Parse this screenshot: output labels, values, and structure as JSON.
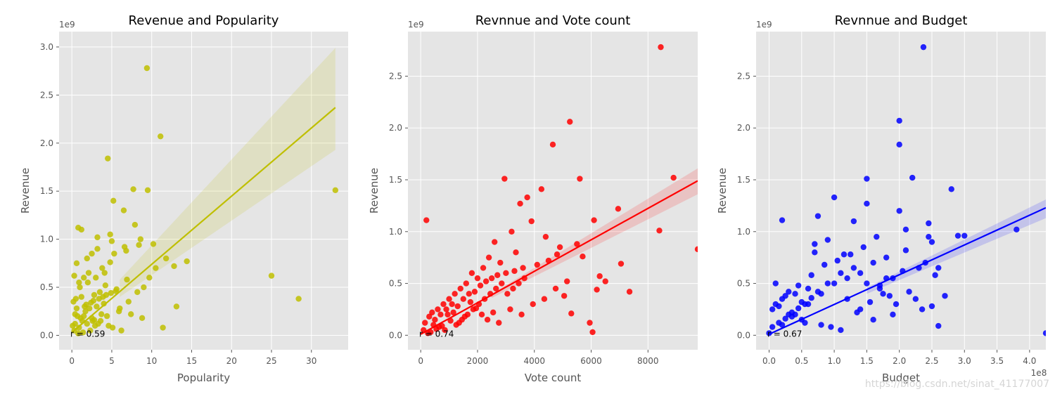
{
  "watermark": "https://blog.csdn.net/sinat_41177007",
  "chart_data": [
    {
      "type": "scatter",
      "title": "Revenue and Popularity",
      "xlabel": "Popularity",
      "ylabel": "Revenue",
      "y_offset_label": "1e9",
      "x_offset_label": "",
      "xlim": [
        -1.6,
        34.6
      ],
      "ylim": [
        -0.15,
        3.16
      ],
      "xticks": [
        0,
        5,
        10,
        15,
        20,
        25,
        30
      ],
      "xtick_labels": [
        "0",
        "5",
        "10",
        "15",
        "20",
        "25",
        "30"
      ],
      "yticks": [
        0,
        0.5,
        1.0,
        1.5,
        2.0,
        2.5,
        3.0
      ],
      "ytick_labels": [
        "0.0",
        "0.5",
        "1.0",
        "1.5",
        "2.0",
        "2.5",
        "3.0"
      ],
      "color": "#bfbf00",
      "annotation": "r = 0.59",
      "regression": {
        "x": [
          0,
          33
        ],
        "y": [
          0.03,
          2.37
        ]
      },
      "ci_band": {
        "x": [
          6,
          33
        ],
        "upper": [
          0.58,
          2.99
        ],
        "lower": [
          0.4,
          1.93
        ]
      },
      "points": {
        "x": [
          9.4,
          11.1,
          4.5,
          7.7,
          9.5,
          33.0,
          25.0,
          28.4,
          13.1,
          11.4,
          0.8,
          1.2,
          10.2,
          12.8,
          14.4,
          6.5,
          7.9,
          8.6,
          5.2,
          4.8,
          3.2,
          2.5,
          1.9,
          0.6,
          0.3,
          3.8,
          2.1,
          1.5,
          0.9,
          4.2,
          5.6,
          6.9,
          3.5,
          2.8,
          1.2,
          0.5,
          0.2,
          4.0,
          3.1,
          2.2,
          1.7,
          0.4,
          0.7,
          1.1,
          2.6,
          3.3,
          4.6,
          5.1,
          6.2,
          7.1,
          8.2,
          9.0,
          5.9,
          4.4,
          3.6,
          2.9,
          2.3,
          1.4,
          0.8,
          0.3,
          0.1,
          1.8,
          2.7,
          3.9,
          4.9,
          6.0,
          7.4,
          8.8,
          10.5,
          11.8,
          1.0,
          2.0,
          3.0,
          4.1,
          5.3,
          6.6,
          0.6,
          1.6,
          2.4,
          3.4,
          4.3,
          5.5,
          1.3,
          2.5,
          3.7,
          0.9,
          1.9,
          2.8,
          0.4,
          1.5,
          4.8,
          6.8,
          8.4,
          9.7,
          5.0,
          3.2
        ],
        "y": [
          2.78,
          2.07,
          1.84,
          1.52,
          1.51,
          1.51,
          0.62,
          0.38,
          0.3,
          0.08,
          1.12,
          1.1,
          0.95,
          0.72,
          0.77,
          1.3,
          1.15,
          1.0,
          1.4,
          1.05,
          0.9,
          0.85,
          0.8,
          0.75,
          0.62,
          0.7,
          0.65,
          0.6,
          0.55,
          0.52,
          0.48,
          0.58,
          0.45,
          0.42,
          0.4,
          0.38,
          0.35,
          0.33,
          0.3,
          0.28,
          0.25,
          0.22,
          0.2,
          0.18,
          0.15,
          0.12,
          0.1,
          0.08,
          0.05,
          0.35,
          0.45,
          0.5,
          0.25,
          0.2,
          0.15,
          0.1,
          0.05,
          0.03,
          0.02,
          0.05,
          0.1,
          0.32,
          0.36,
          0.4,
          0.44,
          0.28,
          0.22,
          0.18,
          0.7,
          0.8,
          0.5,
          0.55,
          0.6,
          0.65,
          0.85,
          0.92,
          0.28,
          0.3,
          0.34,
          0.38,
          0.42,
          0.46,
          0.15,
          0.18,
          0.22,
          0.08,
          0.12,
          0.16,
          0.12,
          0.2,
          0.76,
          0.88,
          0.94,
          0.6,
          0.98,
          1.02
        ]
      }
    },
    {
      "type": "scatter",
      "title": "Revnnue and Vote count",
      "xlabel": "Vote count",
      "ylabel": "Revenue",
      "y_offset_label": "1e9",
      "x_offset_label": "",
      "xlim": [
        -450,
        9750
      ],
      "ylim": [
        -0.14,
        2.93
      ],
      "xticks": [
        0,
        2000,
        4000,
        6000,
        8000
      ],
      "xtick_labels": [
        "0",
        "2000",
        "4000",
        "6000",
        "8000"
      ],
      "yticks": [
        0,
        0.5,
        1.0,
        1.5,
        2.0,
        2.5
      ],
      "ytick_labels": [
        "0.0",
        "0.5",
        "1.0",
        "1.5",
        "2.0",
        "2.5"
      ],
      "color": "#ff0000",
      "annotation": "r = 0.74",
      "regression": {
        "x": [
          0,
          9750
        ],
        "y": [
          0.01,
          1.49
        ]
      },
      "ci_band": {
        "x": [
          2500,
          9750
        ],
        "upper": [
          0.4,
          1.61
        ],
        "lower": [
          0.36,
          1.36
        ]
      },
      "points": {
        "x": [
          8450,
          5250,
          4650,
          8900,
          5600,
          2950,
          4250,
          3750,
          200,
          8400,
          6100,
          6950,
          9750,
          5700,
          6300,
          7050,
          7350,
          6500,
          6200,
          5300,
          5050,
          5950,
          6050,
          3500,
          3900,
          4400,
          4900,
          3200,
          3350,
          2600,
          2800,
          2400,
          2200,
          2000,
          1800,
          1600,
          1400,
          1200,
          1000,
          800,
          600,
          400,
          300,
          150,
          100,
          500,
          700,
          900,
          1100,
          1300,
          1500,
          1700,
          1900,
          2100,
          2300,
          2500,
          2700,
          3000,
          3300,
          3600,
          4100,
          4500,
          4800,
          5500,
          1250,
          1450,
          1650,
          1850,
          2050,
          2250,
          2450,
          2650,
          2850,
          3050,
          3250,
          3450,
          3650,
          850,
          650,
          450,
          250,
          950,
          1150,
          1350,
          1550,
          350,
          550,
          750,
          1050,
          1750,
          1950,
          2150,
          2350,
          2550,
          2750,
          3150,
          3550,
          3950,
          4350,
          4750,
          5150
        ],
        "y": [
          2.78,
          2.06,
          1.84,
          1.52,
          1.51,
          1.51,
          1.41,
          1.33,
          1.11,
          1.01,
          1.11,
          1.22,
          0.83,
          0.76,
          0.57,
          0.69,
          0.42,
          0.52,
          0.44,
          0.21,
          0.38,
          0.12,
          0.03,
          1.27,
          1.1,
          0.95,
          0.85,
          1.0,
          0.8,
          0.9,
          0.7,
          0.75,
          0.65,
          0.55,
          0.6,
          0.5,
          0.45,
          0.4,
          0.35,
          0.3,
          0.25,
          0.22,
          0.18,
          0.12,
          0.05,
          0.15,
          0.2,
          0.25,
          0.3,
          0.28,
          0.35,
          0.4,
          0.42,
          0.48,
          0.52,
          0.55,
          0.58,
          0.6,
          0.62,
          0.65,
          0.68,
          0.72,
          0.78,
          0.88,
          0.1,
          0.15,
          0.2,
          0.25,
          0.3,
          0.35,
          0.4,
          0.45,
          0.5,
          0.4,
          0.45,
          0.5,
          0.55,
          0.05,
          0.08,
          0.1,
          0.02,
          0.2,
          0.22,
          0.12,
          0.18,
          0.03,
          0.06,
          0.09,
          0.14,
          0.32,
          0.26,
          0.2,
          0.15,
          0.22,
          0.12,
          0.25,
          0.2,
          0.3,
          0.35,
          0.45,
          0.52
        ]
      }
    },
    {
      "type": "scatter",
      "title": "Revnnue and Budget",
      "xlabel": "Budget",
      "ylabel": "Revenue",
      "y_offset_label": "1e9",
      "x_offset_label": "1e8",
      "xlim": [
        -0.2,
        4.25
      ],
      "ylim": [
        -0.14,
        2.93
      ],
      "xticks": [
        0,
        0.5,
        1.0,
        1.5,
        2.0,
        2.5,
        3.0,
        3.5,
        4.0
      ],
      "xtick_labels": [
        "0.0",
        "0.5",
        "1.0",
        "1.5",
        "2.0",
        "2.5",
        "3.0",
        "3.5",
        "4.0"
      ],
      "yticks": [
        0,
        0.5,
        1.0,
        1.5,
        2.0,
        2.5
      ],
      "ytick_labels": [
        "0.0",
        "0.5",
        "1.0",
        "1.5",
        "2.0",
        "2.5"
      ],
      "color": "#0000ff",
      "annotation": "r = 0.67",
      "regression": {
        "x": [
          0,
          4.25
        ],
        "y": [
          0.01,
          1.23
        ]
      },
      "ci_band": {
        "x": [
          1.5,
          4.25
        ],
        "upper": [
          0.46,
          1.31
        ],
        "lower": [
          0.4,
          1.13
        ]
      },
      "points": {
        "x": [
          2.37,
          2.0,
          2.0,
          2.2,
          1.5,
          2.8,
          1.0,
          0.75,
          1.3,
          0.2,
          1.5,
          0.7,
          2.45,
          2.1,
          2.9,
          3.0,
          3.8,
          4.25,
          2.5,
          2.55,
          2.7,
          2.6,
          2.5,
          2.3,
          1.8,
          1.6,
          1.4,
          1.2,
          0.9,
          0.6,
          0.4,
          0.2,
          0.1,
          0.05,
          0.3,
          0.5,
          0.8,
          1.1,
          1.7,
          1.9,
          2.05,
          2.15,
          1.45,
          1.25,
          1.05,
          0.85,
          0.65,
          0.45,
          0.25,
          0.15,
          0.35,
          0.55,
          0.95,
          1.35,
          1.55,
          1.75,
          1.95,
          2.25,
          2.35,
          0.7,
          0.9,
          1.1,
          1.3,
          1.5,
          1.7,
          1.9,
          0.1,
          0.3,
          0.5,
          0.0,
          0.2,
          0.4,
          0.6,
          0.8,
          1.0,
          1.2,
          1.4,
          1.6,
          2.4,
          2.6,
          2.0,
          1.8,
          0.05,
          0.15,
          0.25,
          0.35,
          0.45,
          0.55,
          0.65,
          0.75,
          1.15,
          1.65,
          2.1,
          2.45,
          1.85
        ],
        "y": [
          2.78,
          2.07,
          1.84,
          1.52,
          1.51,
          1.41,
          1.33,
          1.15,
          1.1,
          1.11,
          1.27,
          0.8,
          1.08,
          1.02,
          0.96,
          0.96,
          1.02,
          0.02,
          0.28,
          0.58,
          0.38,
          0.09,
          0.9,
          0.65,
          0.75,
          0.7,
          0.6,
          0.55,
          0.5,
          0.45,
          0.4,
          0.35,
          0.3,
          0.25,
          0.2,
          0.15,
          0.1,
          0.05,
          0.45,
          0.55,
          0.62,
          0.42,
          0.85,
          0.78,
          0.72,
          0.68,
          0.58,
          0.48,
          0.38,
          0.28,
          0.18,
          0.12,
          0.08,
          0.22,
          0.32,
          0.4,
          0.3,
          0.35,
          0.25,
          0.88,
          0.92,
          0.6,
          0.65,
          0.5,
          0.48,
          0.2,
          0.5,
          0.42,
          0.32,
          0.02,
          0.1,
          0.2,
          0.3,
          0.4,
          0.5,
          0.35,
          0.25,
          0.15,
          0.7,
          0.65,
          1.2,
          0.55,
          0.08,
          0.12,
          0.16,
          0.22,
          0.26,
          0.3,
          0.36,
          0.42,
          0.78,
          0.95,
          0.82,
          0.95,
          0.38
        ]
      }
    }
  ]
}
